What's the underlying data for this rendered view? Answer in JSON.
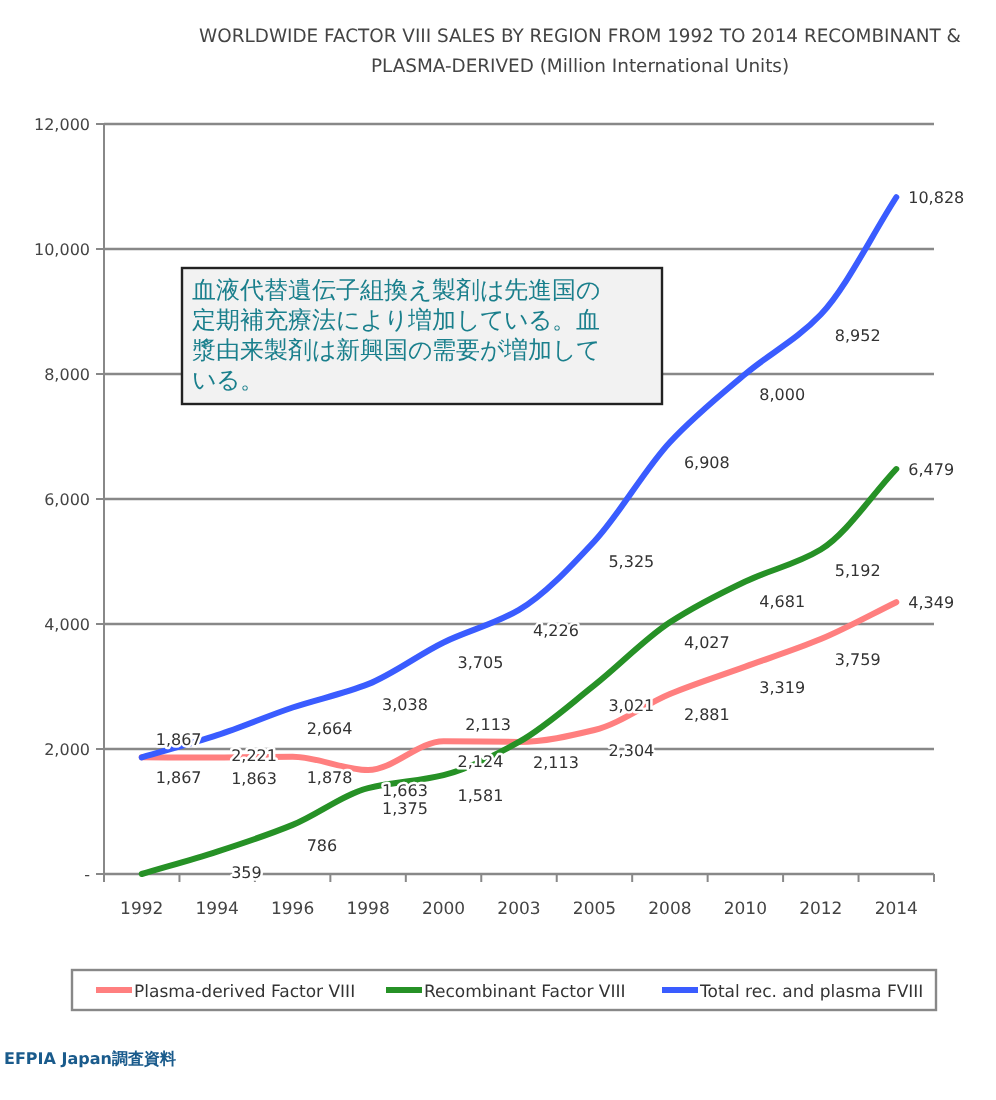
{
  "chart_data": {
    "type": "line",
    "title": "WORLDWIDE FACTOR VIII SALES BY REGION FROM 1992 TO 2014 RECOMBINANT & PLASMA-DERIVED (Million International Units)",
    "categories": [
      "1992",
      "1994",
      "1996",
      "1998",
      "2000",
      "2003",
      "2005",
      "2008",
      "2010",
      "2012",
      "2014"
    ],
    "series": [
      {
        "name": "Plasma-derived Factor VIII",
        "color": "#ff7f7f",
        "values": [
          1867,
          1863,
          1878,
          1663,
          2124,
          2113,
          2304,
          2881,
          3319,
          3759,
          4349
        ],
        "value_labels": [
          "1,867",
          "1,863",
          "1,878",
          "1,663",
          "2,124",
          "2,113",
          "2,304",
          "2,881",
          "3,319",
          "3,759",
          "4,349"
        ]
      },
      {
        "name": "Recombinant Factor VIII",
        "color": "#269126",
        "values": [
          0,
          359,
          786,
          1375,
          1581,
          2113,
          3021,
          4027,
          4681,
          5192,
          6479
        ],
        "value_labels": [
          null,
          "359",
          "786",
          "1,375",
          "1,581",
          "2,113",
          "3,021",
          "4,027",
          "4,681",
          "5,192",
          "6,479"
        ]
      },
      {
        "name": "Total rec. and plasma FVIII",
        "color": "#3a5cff",
        "values": [
          1867,
          2221,
          2664,
          3038,
          3705,
          4226,
          5325,
          6908,
          8000,
          8952,
          10828
        ],
        "value_labels": [
          "1,867",
          "2,221",
          "2,664",
          "3,038",
          "3,705",
          "4,226",
          "5,325",
          "6,908",
          "8,000",
          "8,952",
          "10,828"
        ]
      }
    ],
    "ylim": [
      0,
      12000
    ],
    "yticks": [
      {
        "value": 0,
        "label": "-"
      },
      {
        "value": 2000,
        "label": "2,000"
      },
      {
        "value": 4000,
        "label": "4,000"
      },
      {
        "value": 6000,
        "label": "6,000"
      },
      {
        "value": 8000,
        "label": "8,000"
      },
      {
        "value": 10000,
        "label": "10,000"
      },
      {
        "value": 12000,
        "label": "12,000"
      }
    ],
    "grid": "y",
    "legend": "bottom",
    "marker": "none",
    "line_style": "solid",
    "annotations": [
      "血液代替遺伝子組換え製剤は先進国の定期補充療法により増加している。血漿由来製剤は新興国の需要が増加している。",
      "EFPIA Japan調査資料"
    ]
  }
}
